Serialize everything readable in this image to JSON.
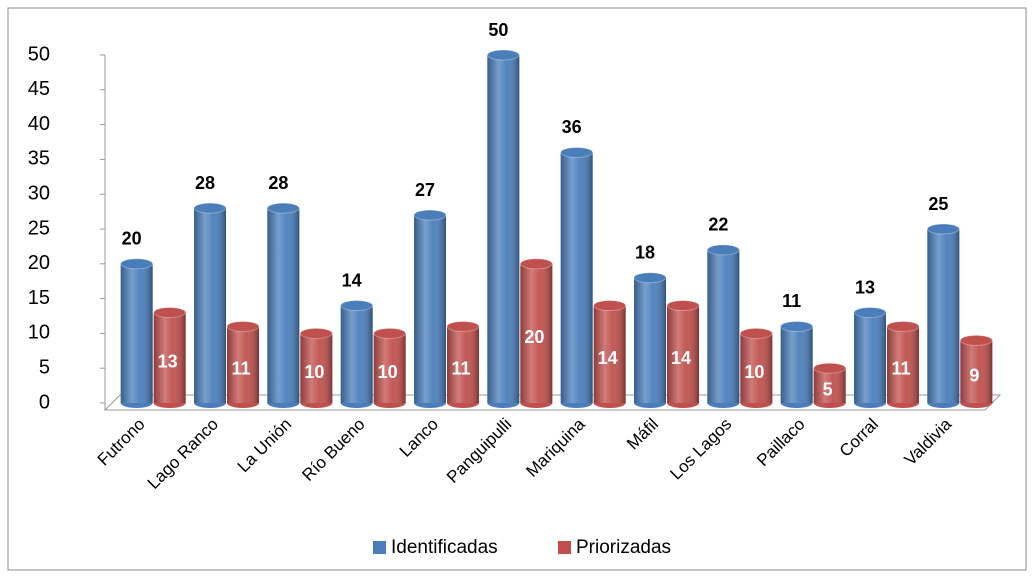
{
  "chart_data": {
    "type": "bar",
    "categories": [
      "Futrono",
      "Lago Ranco",
      "La Unión",
      "Río Bueno",
      "Lanco",
      "Panguipulli",
      "Mariquina",
      "Máfil",
      "Los Lagos",
      "Paillaco",
      "Corral",
      "Valdivia"
    ],
    "series": [
      {
        "name": "Identificadas",
        "color": "#4a7ebb",
        "values": [
          20,
          28,
          28,
          14,
          27,
          50,
          36,
          18,
          22,
          11,
          13,
          25
        ]
      },
      {
        "name": "Priorizadas",
        "color": "#c0504d",
        "values": [
          13,
          11,
          10,
          10,
          11,
          20,
          14,
          14,
          10,
          5,
          11,
          9
        ]
      }
    ],
    "ylim": [
      0,
      50
    ],
    "yticks": [
      0,
      5,
      10,
      15,
      20,
      25,
      30,
      35,
      40,
      45,
      50
    ],
    "legend": "bottom"
  }
}
